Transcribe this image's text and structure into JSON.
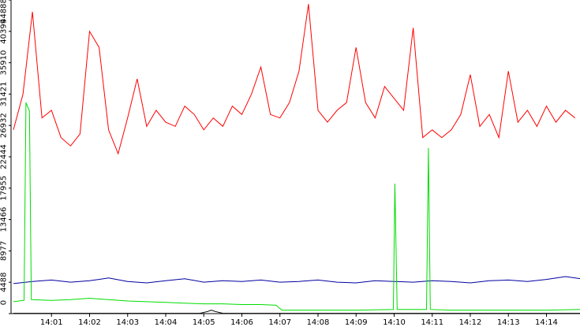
{
  "chart_data": {
    "type": "line",
    "xlim": [
      0,
      14.9
    ],
    "ylim": [
      0,
      44888
    ],
    "xticks": [
      {
        "value": 1,
        "label": "14:01"
      },
      {
        "value": 2,
        "label": "14:02"
      },
      {
        "value": 3,
        "label": "14:03"
      },
      {
        "value": 4,
        "label": "14:04"
      },
      {
        "value": 5,
        "label": "14:05"
      },
      {
        "value": 6,
        "label": "14:06"
      },
      {
        "value": 7,
        "label": "14:07"
      },
      {
        "value": 8,
        "label": "14:08"
      },
      {
        "value": 9,
        "label": "14:09"
      },
      {
        "value": 10,
        "label": "14:10"
      },
      {
        "value": 11,
        "label": "14:11"
      },
      {
        "value": 12,
        "label": "14:12"
      },
      {
        "value": 13,
        "label": "14:13"
      },
      {
        "value": 14,
        "label": "14:14"
      }
    ],
    "yticks": [
      0,
      4488,
      8977,
      13466,
      17955,
      22444,
      26932,
      31421,
      35910,
      40399,
      44888
    ],
    "series": [
      {
        "color": "#ff0000",
        "x": [
          0,
          0.25,
          0.5,
          0.75,
          1,
          1.25,
          1.5,
          1.75,
          2,
          2.25,
          2.5,
          2.75,
          3,
          3.25,
          3.5,
          3.75,
          4,
          4.25,
          4.5,
          4.75,
          5,
          5.25,
          5.5,
          5.75,
          6,
          6.25,
          6.5,
          6.75,
          7,
          7.25,
          7.5,
          7.75,
          8,
          8.25,
          8.5,
          8.75,
          9,
          9.25,
          9.5,
          9.75,
          10,
          10.25,
          10.5,
          10.75,
          11,
          11.25,
          11.5,
          11.75,
          12,
          12.25,
          12.5,
          12.75,
          13,
          13.25,
          13.5,
          13.75,
          14,
          14.25,
          14.5,
          14.75
        ],
        "values": [
          26300,
          31400,
          43200,
          28000,
          29100,
          25200,
          24000,
          25700,
          40400,
          38100,
          26300,
          22900,
          28000,
          33600,
          26800,
          29100,
          27400,
          26800,
          29700,
          28500,
          26300,
          28000,
          26800,
          29700,
          28500,
          31400,
          35300,
          28500,
          28000,
          30200,
          34700,
          44300,
          29100,
          27400,
          29100,
          30200,
          38100,
          30200,
          28000,
          32500,
          30800,
          29100,
          40900,
          25200,
          26300,
          25200,
          26300,
          28500,
          34200,
          26800,
          28500,
          25200,
          34700,
          27400,
          29100,
          26800,
          29700,
          27400,
          29100,
          28000
        ]
      },
      {
        "color": "#0000a0",
        "x": [
          0,
          0.5,
          1,
          1.5,
          2,
          2.5,
          3,
          3.5,
          4,
          4.5,
          5,
          5.5,
          6,
          6.5,
          7,
          7.5,
          8,
          8.5,
          9,
          9.5,
          10,
          10.5,
          11,
          11.5,
          12,
          12.5,
          13,
          13.5,
          14,
          14.5,
          14.9
        ],
        "values": [
          4300,
          4600,
          4800,
          4500,
          4700,
          5100,
          4600,
          4400,
          4700,
          5000,
          4500,
          4700,
          4600,
          4800,
          4500,
          4600,
          4800,
          4500,
          4400,
          4700,
          4600,
          4500,
          4700,
          4600,
          4400,
          4700,
          4800,
          4600,
          4900,
          5300,
          5000
        ]
      },
      {
        "color": "#00dd00",
        "x": [
          0,
          0.28,
          0.33,
          0.42,
          0.47,
          1,
          1.5,
          2,
          2.5,
          3,
          3.5,
          4,
          4.5,
          5,
          5.5,
          6,
          6.5,
          6.9,
          7.05,
          8,
          9,
          9.98,
          10.02,
          10.08,
          10.85,
          10.9,
          10.95,
          11.5,
          12,
          13,
          14,
          14.9
        ],
        "values": [
          1700,
          1900,
          30200,
          29000,
          2000,
          1900,
          2000,
          2200,
          2000,
          1800,
          1700,
          1600,
          1500,
          1400,
          1400,
          1300,
          1300,
          1200,
          500,
          500,
          500,
          600,
          18600,
          600,
          600,
          23700,
          600,
          500,
          500,
          500,
          500,
          600
        ]
      },
      {
        "color": "#000000",
        "x": [
          0,
          4.9,
          5.1,
          5.2,
          5.3,
          5.5,
          14.9
        ],
        "values": [
          50,
          50,
          300,
          500,
          300,
          50,
          50
        ]
      }
    ]
  }
}
